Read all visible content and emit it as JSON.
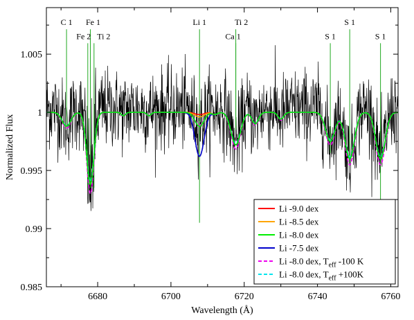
{
  "chart_data": {
    "type": "line",
    "title": "",
    "xlabel": "Wavelength (Å)",
    "ylabel": "Normalized Flux",
    "xlim": [
      6666,
      6762
    ],
    "ylim": [
      0.985,
      1.009
    ],
    "xticks": [
      6680,
      6700,
      6720,
      6740,
      6760
    ],
    "yticks": [
      0.985,
      0.99,
      0.995,
      1.0,
      1.005
    ],
    "xtick_labels": [
      "6680",
      "6700",
      "6720",
      "6740",
      "6760"
    ],
    "ytick_labels": [
      "0.985",
      "0.99",
      "0.995",
      "1",
      "1.005"
    ],
    "grid": false,
    "legend_position": "bottom-right",
    "observed_color": "#000000",
    "line_marker_color": "#22aa22",
    "continuum": 1.0,
    "line_markers": [
      {
        "label": "C 1",
        "wavelength": 6671.5,
        "y_top": 1.0075,
        "y_bottom": 0.9985
      },
      {
        "label": "Fe 2",
        "wavelength": 6677.3,
        "y_top": 1.0063,
        "y_bottom": 0.9935
      },
      {
        "label": "Fe 1",
        "wavelength": 6678.0,
        "y_top": 1.0075,
        "y_bottom": 0.9935
      },
      {
        "label": "Ti 2",
        "wavelength": 6679.0,
        "y_top": 1.0063,
        "y_bottom": 0.9935
      },
      {
        "label": "Li 1",
        "wavelength": 6707.8,
        "y_top": 1.0075,
        "y_bottom": 0.9905
      },
      {
        "label": "Ti 2",
        "wavelength": 6717.7,
        "y_top": 1.0075,
        "y_bottom": 0.9985
      },
      {
        "label": "Ca 1",
        "wavelength": 6717.7,
        "y_top": 1.0063,
        "y_bottom": 0.9985
      },
      {
        "label": "S 1",
        "wavelength": 6743.5,
        "y_top": 1.0063,
        "y_bottom": 0.9965
      },
      {
        "label": "S 1",
        "wavelength": 6748.8,
        "y_top": 1.0075,
        "y_bottom": 0.9955
      },
      {
        "label": "S 1",
        "wavelength": 6757.2,
        "y_top": 1.0063,
        "y_bottom": 0.9855
      }
    ],
    "absorption_lines": [
      {
        "center": 6671.5,
        "width": 1.2,
        "depth": 0.0012
      },
      {
        "center": 6678.0,
        "width": 1.0,
        "depth": 0.0062
      },
      {
        "center": 6687.0,
        "width": 0.6,
        "depth": 0.0003
      },
      {
        "center": 6694.0,
        "width": 0.6,
        "depth": 0.0003
      },
      {
        "center": 6712.0,
        "width": 0.7,
        "depth": 0.0002
      },
      {
        "center": 6717.7,
        "width": 1.3,
        "depth": 0.0028
      },
      {
        "center": 6723.0,
        "width": 0.9,
        "depth": 0.001
      },
      {
        "center": 6730.0,
        "width": 0.8,
        "depth": 0.0006
      },
      {
        "center": 6743.5,
        "width": 1.3,
        "depth": 0.0025
      },
      {
        "center": 6748.8,
        "width": 1.3,
        "depth": 0.004
      },
      {
        "center": 6757.2,
        "width": 1.3,
        "depth": 0.004
      }
    ],
    "series": [
      {
        "name": "Li -9.0 dex",
        "color": "#ff0000",
        "dash": "solid",
        "li_depth": 0.0002,
        "depth_scale": 1.0
      },
      {
        "name": "Li -8.5 dex",
        "color": "#ffa500",
        "dash": "solid",
        "li_depth": 0.0004,
        "depth_scale": 1.0
      },
      {
        "name": "Li -8.0 dex",
        "color": "#00ee00",
        "dash": "solid",
        "li_depth": 0.0012,
        "depth_scale": 1.0
      },
      {
        "name": "Li -7.5 dex",
        "color": "#0000cc",
        "dash": "solid",
        "li_depth": 0.0038,
        "depth_scale": 1.0
      },
      {
        "name": "Li -8.0 dex, T",
        "sub": "eff",
        "suffix": " -100 K",
        "color": "#ee00ee",
        "dash": "dashed",
        "li_depth": 0.0011,
        "depth_scale": 1.13
      },
      {
        "name": "Li -8.0 dex, T",
        "sub": "eff",
        "suffix": " +100K",
        "color": "#00e5ee",
        "dash": "dashed",
        "li_depth": 0.0012,
        "depth_scale": 0.96
      }
    ]
  }
}
